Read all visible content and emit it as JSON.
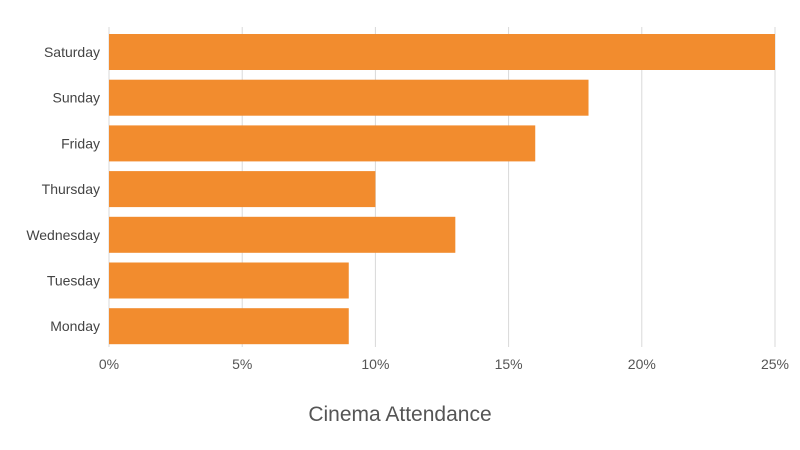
{
  "chart_data": {
    "type": "bar",
    "orientation": "horizontal",
    "categories": [
      "Saturday",
      "Sunday",
      "Friday",
      "Thursday",
      "Wednesday",
      "Tuesday",
      "Monday"
    ],
    "values": [
      25,
      18,
      16,
      10,
      13,
      9,
      9
    ],
    "value_unit": "%",
    "xlabel": "Cinema Attendance",
    "ylabel": "",
    "xlim": [
      0,
      25
    ],
    "x_ticks": [
      "0%",
      "5%",
      "10%",
      "15%",
      "20%",
      "25%"
    ],
    "x_tick_values": [
      0,
      5,
      10,
      15,
      20,
      25
    ],
    "grid": "vertical",
    "legend": "none",
    "colors": {
      "bar": "#f28c2e",
      "grid": "#d9d9d9",
      "text": "#555555"
    }
  }
}
